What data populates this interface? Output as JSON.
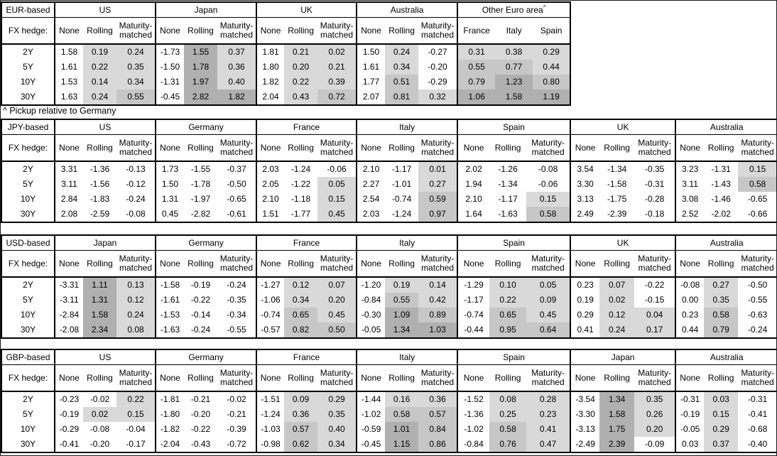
{
  "footnote": "^ Pickup relative to Germany",
  "shading": {
    "light": "#d9d9d9",
    "medium": "#c7c7c7",
    "dark": "#b0b0b0",
    "negative": "#ffffff",
    "rule": "light: 0<=v<0.5, medium: 0.5<=v<1.0, dark: v>=1.0; None column never shaded"
  },
  "hedge_types": [
    "None",
    "Rolling",
    "Maturity-matched"
  ],
  "tables": [
    {
      "id": "eur-based",
      "base_label": "EUR-based",
      "hedge_label": "FX hedge:",
      "tenors": [
        "2Y",
        "5Y",
        "10Y",
        "30Y"
      ],
      "groups": [
        {
          "name": "US",
          "subcols": [
            "None",
            "Rolling",
            "Maturity-matched"
          ],
          "shade_all": false,
          "rows": [
            [
              "1.58",
              "0.19",
              "0.24"
            ],
            [
              "1.61",
              "0.22",
              "0.35"
            ],
            [
              "1.53",
              "0.14",
              "0.34"
            ],
            [
              "1.63",
              "0.24",
              "0.55"
            ]
          ]
        },
        {
          "name": "Japan",
          "subcols": [
            "None",
            "Rolling",
            "Maturity-matched"
          ],
          "shade_all": false,
          "rows": [
            [
              "-1.73",
              "1.55",
              "0.37"
            ],
            [
              "-1.50",
              "1.78",
              "0.36"
            ],
            [
              "-1.31",
              "1.97",
              "0.40"
            ],
            [
              "-0.45",
              "2.82",
              "1.82"
            ]
          ]
        },
        {
          "name": "UK",
          "subcols": [
            "None",
            "Rolling",
            "Maturity-matched"
          ],
          "shade_all": false,
          "rows": [
            [
              "1.81",
              "0.21",
              "0.02"
            ],
            [
              "1.80",
              "0.20",
              "0.21"
            ],
            [
              "1.82",
              "0.22",
              "0.39"
            ],
            [
              "2.04",
              "0.43",
              "0.72"
            ]
          ]
        },
        {
          "name": "Australia",
          "subcols": [
            "None",
            "Rolling",
            "Maturity-matched"
          ],
          "shade_all": false,
          "rows": [
            [
              "1.50",
              "0.24",
              "-0.27"
            ],
            [
              "1.61",
              "0.34",
              "-0.20"
            ],
            [
              "1.77",
              "0.51",
              "-0.29"
            ],
            [
              "2.07",
              "0.81",
              "0.32"
            ]
          ]
        },
        {
          "name": "Other Euro area",
          "footnote_marker": "^",
          "subcols": [
            "France",
            "Italy",
            "Spain"
          ],
          "shade_all": true,
          "equal_cols": true,
          "rows": [
            [
              "0.31",
              "0.38",
              "0.29"
            ],
            [
              "0.55",
              "0.77",
              "0.44"
            ],
            [
              "0.79",
              "1.23",
              "0.80"
            ],
            [
              "1.06",
              "1.58",
              "1.19"
            ]
          ]
        }
      ]
    },
    {
      "id": "jpy-based",
      "base_label": "JPY-based",
      "hedge_label": "FX hedge:",
      "tenors": [
        "2Y",
        "5Y",
        "10Y",
        "30Y"
      ],
      "groups": [
        {
          "name": "US",
          "subcols": [
            "None",
            "Rolling",
            "Maturity-matched"
          ],
          "shade_all": false,
          "rows": [
            [
              "3.31",
              "-1.36",
              "-0.13"
            ],
            [
              "3.11",
              "-1.56",
              "-0.12"
            ],
            [
              "2.84",
              "-1.83",
              "-0.24"
            ],
            [
              "2.08",
              "-2.59",
              "-0.08"
            ]
          ]
        },
        {
          "name": "Germany",
          "subcols": [
            "None",
            "Rolling",
            "Maturity-matched"
          ],
          "shade_all": false,
          "rows": [
            [
              "1.73",
              "-1.55",
              "-0.37"
            ],
            [
              "1.50",
              "-1.78",
              "-0.50"
            ],
            [
              "1.31",
              "-1.97",
              "-0.65"
            ],
            [
              "0.45",
              "-2.82",
              "-0.61"
            ]
          ]
        },
        {
          "name": "France",
          "subcols": [
            "None",
            "Rolling",
            "Maturity-matched"
          ],
          "shade_all": false,
          "rows": [
            [
              "2.03",
              "-1.24",
              "-0.06"
            ],
            [
              "2.05",
              "-1.22",
              "0.05"
            ],
            [
              "2.10",
              "-1.18",
              "0.15"
            ],
            [
              "1.51",
              "-1.77",
              "0.45"
            ]
          ]
        },
        {
          "name": "Italy",
          "subcols": [
            "None",
            "Rolling",
            "Maturity-matched"
          ],
          "shade_all": false,
          "rows": [
            [
              "2.10",
              "-1.17",
              "0.01"
            ],
            [
              "2.27",
              "-1.01",
              "0.27"
            ],
            [
              "2.54",
              "-0.74",
              "0.59"
            ],
            [
              "2.03",
              "-1.24",
              "0.97"
            ]
          ]
        },
        {
          "name": "Spain",
          "subcols": [
            "None",
            "Rolling",
            "Maturity-matched"
          ],
          "shade_all": false,
          "rows": [
            [
              "2.02",
              "-1.26",
              "-0.08"
            ],
            [
              "1.94",
              "-1.34",
              "-0.06"
            ],
            [
              "2.10",
              "-1.17",
              "0.15"
            ],
            [
              "1.64",
              "-1.63",
              "0.58"
            ]
          ]
        },
        {
          "name": "UK",
          "subcols": [
            "None",
            "Rolling",
            "Maturity-matched"
          ],
          "shade_all": false,
          "rows": [
            [
              "3.54",
              "-1.34",
              "-0.35"
            ],
            [
              "3.30",
              "-1.58",
              "-0.31"
            ],
            [
              "3.13",
              "-1.75",
              "-0.28"
            ],
            [
              "2.49",
              "-2.39",
              "-0.18"
            ]
          ]
        },
        {
          "name": "Australia",
          "subcols": [
            "None",
            "Rolling",
            "Maturity-matched"
          ],
          "shade_all": false,
          "rows": [
            [
              "3.23",
              "-1.31",
              "0.15"
            ],
            [
              "3.11",
              "-1.43",
              "0.58"
            ],
            [
              "3.08",
              "-1.46",
              "-0.65"
            ],
            [
              "2.52",
              "-2.02",
              "-0.66"
            ]
          ]
        }
      ]
    },
    {
      "id": "usd-based",
      "base_label": "USD-based",
      "hedge_label": "FX hedge:",
      "tenors": [
        "2Y",
        "5Y",
        "10Y",
        "30Y"
      ],
      "groups": [
        {
          "name": "Japan",
          "subcols": [
            "None",
            "Rolling",
            "Maturity-matched"
          ],
          "shade_all": false,
          "rows": [
            [
              "-3.31",
              "1.11",
              "0.13"
            ],
            [
              "-3.11",
              "1.31",
              "0.12"
            ],
            [
              "-2.84",
              "1.58",
              "0.24"
            ],
            [
              "-2.08",
              "2.34",
              "0.08"
            ]
          ]
        },
        {
          "name": "Germany",
          "subcols": [
            "None",
            "Rolling",
            "Maturity-matched"
          ],
          "shade_all": false,
          "rows": [
            [
              "-1.58",
              "-0.19",
              "-0.24"
            ],
            [
              "-1.61",
              "-0.22",
              "-0.35"
            ],
            [
              "-1.53",
              "-0.14",
              "-0.34"
            ],
            [
              "-1.63",
              "-0.24",
              "-0.55"
            ]
          ]
        },
        {
          "name": "France",
          "subcols": [
            "None",
            "Rolling",
            "Maturity-matched"
          ],
          "shade_all": false,
          "rows": [
            [
              "-1.27",
              "0.12",
              "0.07"
            ],
            [
              "-1.06",
              "0.34",
              "0.20"
            ],
            [
              "-0.74",
              "0.65",
              "0.45"
            ],
            [
              "-0.57",
              "0.82",
              "0.50"
            ]
          ]
        },
        {
          "name": "Italy",
          "subcols": [
            "None",
            "Rolling",
            "Maturity-matched"
          ],
          "shade_all": false,
          "rows": [
            [
              "-1.20",
              "0.19",
              "0.14"
            ],
            [
              "-0.84",
              "0.55",
              "0.42"
            ],
            [
              "-0.30",
              "1.09",
              "0.89"
            ],
            [
              "-0.05",
              "1.34",
              "1.03"
            ]
          ]
        },
        {
          "name": "Spain",
          "subcols": [
            "None",
            "Rolling",
            "Maturity-matched"
          ],
          "shade_all": false,
          "rows": [
            [
              "-1.29",
              "0.10",
              "0.05"
            ],
            [
              "-1.17",
              "0.22",
              "0.09"
            ],
            [
              "-0.74",
              "0.65",
              "0.45"
            ],
            [
              "-0.44",
              "0.95",
              "0.64"
            ]
          ]
        },
        {
          "name": "UK",
          "subcols": [
            "None",
            "Rolling",
            "Maturity-matched"
          ],
          "shade_all": false,
          "rows": [
            [
              "0.23",
              "0.07",
              "-0.22"
            ],
            [
              "0.19",
              "0.02",
              "-0.15"
            ],
            [
              "0.29",
              "0.12",
              "0.04"
            ],
            [
              "0.41",
              "0.24",
              "0.17"
            ]
          ]
        },
        {
          "name": "Australia",
          "subcols": [
            "None",
            "Rolling",
            "Maturity-matched"
          ],
          "shade_all": false,
          "rows": [
            [
              "-0.08",
              "0.27",
              "-0.50"
            ],
            [
              "0.00",
              "0.35",
              "-0.55"
            ],
            [
              "0.23",
              "0.58",
              "-0.63"
            ],
            [
              "0.44",
              "0.79",
              "-0.24"
            ]
          ]
        }
      ]
    },
    {
      "id": "gbp-based",
      "base_label": "GBP-based",
      "hedge_label": "FX hedge:",
      "tenors": [
        "2Y",
        "5Y",
        "10Y",
        "30Y"
      ],
      "groups": [
        {
          "name": "US",
          "subcols": [
            "None",
            "Rolling",
            "Maturity-matched"
          ],
          "shade_all": false,
          "rows": [
            [
              "-0.23",
              "-0.02",
              "0.22"
            ],
            [
              "-0.19",
              "0.02",
              "0.15"
            ],
            [
              "-0.29",
              "-0.08",
              "-0.04"
            ],
            [
              "-0.41",
              "-0.20",
              "-0.17"
            ]
          ]
        },
        {
          "name": "Germany",
          "subcols": [
            "None",
            "Rolling",
            "Maturity-matched"
          ],
          "shade_all": false,
          "rows": [
            [
              "-1.81",
              "-0.21",
              "-0.02"
            ],
            [
              "-1.80",
              "-0.20",
              "-0.21"
            ],
            [
              "-1.82",
              "-0.22",
              "-0.39"
            ],
            [
              "-2.04",
              "-0.43",
              "-0.72"
            ]
          ]
        },
        {
          "name": "France",
          "subcols": [
            "None",
            "Rolling",
            "Maturity-matched"
          ],
          "shade_all": false,
          "rows": [
            [
              "-1.51",
              "0.09",
              "0.29"
            ],
            [
              "-1.24",
              "0.36",
              "0.35"
            ],
            [
              "-1.03",
              "0.57",
              "0.40"
            ],
            [
              "-0.98",
              "0.62",
              "0.34"
            ]
          ]
        },
        {
          "name": "Italy",
          "subcols": [
            "None",
            "Rolling",
            "Maturity-matched"
          ],
          "shade_all": false,
          "rows": [
            [
              "-1.44",
              "0.16",
              "0.36"
            ],
            [
              "-1.02",
              "0.58",
              "0.57"
            ],
            [
              "-0.59",
              "1.01",
              "0.84"
            ],
            [
              "-0.45",
              "1.15",
              "0.86"
            ]
          ]
        },
        {
          "name": "Spain",
          "subcols": [
            "None",
            "Rolling",
            "Maturity-matched"
          ],
          "shade_all": false,
          "rows": [
            [
              "-1.52",
              "0.08",
              "0.28"
            ],
            [
              "-1.36",
              "0.25",
              "0.23"
            ],
            [
              "-1.02",
              "0.58",
              "0.41"
            ],
            [
              "-0.84",
              "0.76",
              "0.47"
            ]
          ]
        },
        {
          "name": "Japan",
          "subcols": [
            "None",
            "Rolling",
            "Maturity-matched"
          ],
          "shade_all": false,
          "rows": [
            [
              "-3.54",
              "1.34",
              "0.35"
            ],
            [
              "-3.30",
              "1.58",
              "0.26"
            ],
            [
              "-3.13",
              "1.75",
              "0.20"
            ],
            [
              "-2.49",
              "2.39",
              "-0.09"
            ]
          ]
        },
        {
          "name": "Australia",
          "subcols": [
            "None",
            "Rolling",
            "Maturity-matched"
          ],
          "shade_all": false,
          "rows": [
            [
              "-0.31",
              "0.03",
              "-0.31"
            ],
            [
              "-0.19",
              "0.15",
              "-0.41"
            ],
            [
              "-0.05",
              "0.29",
              "-0.68"
            ],
            [
              "0.03",
              "0.37",
              "-0.40"
            ]
          ]
        }
      ]
    }
  ]
}
